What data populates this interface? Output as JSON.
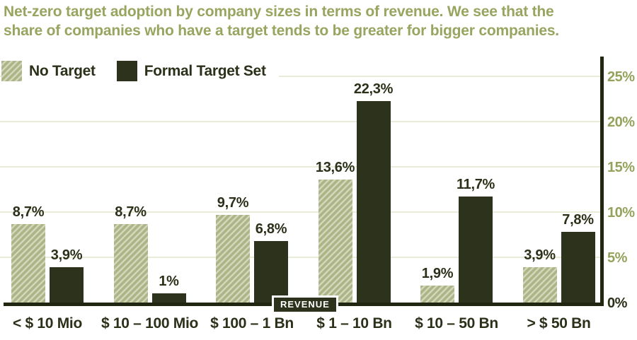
{
  "title": {
    "line1": "Net-zero target adoption by company sizes in terms of revenue. We see that the",
    "line2": "share of companies who have a target tends to be greater for bigger companies."
  },
  "legend": [
    {
      "label": "No Target",
      "swatch": "hatched"
    },
    {
      "label": "Formal Target Set",
      "swatch": "solid"
    }
  ],
  "axis": {
    "x_title": "REVENUE",
    "y_ticks": [
      {
        "label": "25%",
        "value": 25
      },
      {
        "label": "20%",
        "value": 20
      },
      {
        "label": "15%",
        "value": 15
      },
      {
        "label": "10%",
        "value": 10
      },
      {
        "label": "5%",
        "value": 5
      },
      {
        "label": "0%",
        "value": 0
      }
    ]
  },
  "chart_data": {
    "type": "bar",
    "title": "Net-zero target adoption by company sizes in terms of revenue. We see that the share of companies who have a target tends to be greater for bigger companies.",
    "categories": [
      "< $ 10 Mio",
      "$ 10 – 100 Mio",
      "$ 100 – 1 Bn",
      "$ 1 – 10 Bn",
      "$ 10 – 50 Bn",
      "> $ 50 Bn"
    ],
    "series": [
      {
        "name": "No Target",
        "style": "hatched",
        "values": [
          8.7,
          8.7,
          9.7,
          13.6,
          1.9,
          3.9
        ],
        "labels": [
          "8,7%",
          "8,7%",
          "9,7%",
          "13,6%",
          "1,9%",
          "3,9%"
        ]
      },
      {
        "name": "Formal Target Set",
        "style": "solid",
        "values": [
          3.9,
          1,
          6.8,
          22.3,
          11.7,
          7.8
        ],
        "labels": [
          "3,9%",
          "1%",
          "6,8%",
          "22,3%",
          "11,7%",
          "7,8%"
        ]
      }
    ],
    "xlabel": "REVENUE",
    "ylabel": "",
    "ylim": [
      0,
      27
    ],
    "grid": "horizontal",
    "legend_position": "top-left",
    "y_axis_side": "right"
  },
  "colors": {
    "title_text": "#98a560",
    "dark_text": "#2b3019",
    "bar_solid": "#2d321d",
    "hatch_base": "#adb587",
    "hatch_stripe": "#d2d6bb",
    "gridline": "#e9ecd8",
    "axis_line": "#20260f",
    "tick_olive": "#94a25c",
    "background": "#ffffff"
  }
}
